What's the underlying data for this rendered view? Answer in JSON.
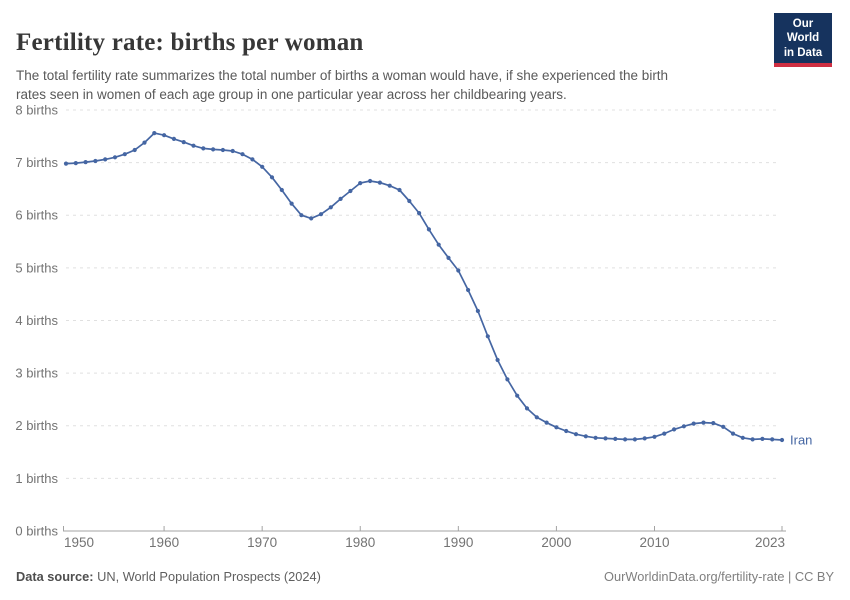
{
  "header": {
    "title": "Fertility rate: births per woman",
    "subtitle": "The total fertility rate summarizes the total number of births a woman would have, if she experienced the birth\nrates seen in women of each age group in one particular year across her childbearing years.",
    "logo": {
      "line1": "Our World",
      "line2": "in Data",
      "bg_color": "#16335e",
      "accent_color": "#cf2f42"
    }
  },
  "chart_data": {
    "type": "line",
    "title": "Fertility rate: births per woman",
    "entity": "Iran",
    "end_label": "Iran",
    "unit": "births per woman",
    "xlabel": "",
    "ylabel": "births",
    "ylim": [
      0,
      8
    ],
    "xlim": [
      1950,
      2023
    ],
    "grid": "horizontal-dashed",
    "legend_position": "end-of-line-label",
    "colors": {
      "line": "#4566a3",
      "grid": "#e0e0e0",
      "axis_line": "#a3a3a3",
      "axis_text": "#737373"
    },
    "yticks": [
      {
        "value": 0,
        "label": "0 births"
      },
      {
        "value": 1,
        "label": "1 births"
      },
      {
        "value": 2,
        "label": "2 births"
      },
      {
        "value": 3,
        "label": "3 births"
      },
      {
        "value": 4,
        "label": "4 births"
      },
      {
        "value": 5,
        "label": "5 births"
      },
      {
        "value": 6,
        "label": "6 births"
      },
      {
        "value": 7,
        "label": "7 births"
      },
      {
        "value": 8,
        "label": "8 births"
      }
    ],
    "xticks": [
      {
        "value": 1950,
        "label": "1950",
        "align": "start"
      },
      {
        "value": 1960,
        "label": "1960",
        "align": "middle"
      },
      {
        "value": 1970,
        "label": "1970",
        "align": "middle"
      },
      {
        "value": 1980,
        "label": "1980",
        "align": "middle"
      },
      {
        "value": 1990,
        "label": "1990",
        "align": "middle"
      },
      {
        "value": 2000,
        "label": "2000",
        "align": "middle"
      },
      {
        "value": 2010,
        "label": "2010",
        "align": "middle"
      },
      {
        "value": 2023,
        "label": "2023",
        "align": "end"
      }
    ],
    "x": [
      1950,
      1951,
      1952,
      1953,
      1954,
      1955,
      1956,
      1957,
      1958,
      1959,
      1960,
      1961,
      1962,
      1963,
      1964,
      1965,
      1966,
      1967,
      1968,
      1969,
      1970,
      1971,
      1972,
      1973,
      1974,
      1975,
      1976,
      1977,
      1978,
      1979,
      1980,
      1981,
      1982,
      1983,
      1984,
      1985,
      1986,
      1987,
      1988,
      1989,
      1990,
      1991,
      1992,
      1993,
      1994,
      1995,
      1996,
      1997,
      1998,
      1999,
      2000,
      2001,
      2002,
      2003,
      2004,
      2005,
      2006,
      2007,
      2008,
      2009,
      2010,
      2011,
      2012,
      2013,
      2014,
      2015,
      2016,
      2017,
      2018,
      2019,
      2020,
      2021,
      2022,
      2023
    ],
    "series": [
      {
        "name": "Iran",
        "values": [
          6.98,
          6.99,
          7.01,
          7.03,
          7.06,
          7.1,
          7.16,
          7.24,
          7.38,
          7.56,
          7.52,
          7.45,
          7.39,
          7.32,
          7.27,
          7.25,
          7.24,
          7.22,
          7.16,
          7.06,
          6.92,
          6.72,
          6.48,
          6.22,
          6.0,
          5.94,
          6.02,
          6.15,
          6.31,
          6.46,
          6.61,
          6.65,
          6.62,
          6.56,
          6.48,
          6.27,
          6.04,
          5.73,
          5.44,
          5.19,
          4.95,
          4.58,
          4.18,
          3.7,
          3.25,
          2.88,
          2.57,
          2.33,
          2.16,
          2.06,
          1.97,
          1.9,
          1.84,
          1.8,
          1.77,
          1.76,
          1.75,
          1.74,
          1.74,
          1.76,
          1.79,
          1.85,
          1.93,
          1.99,
          2.04,
          2.06,
          2.05,
          1.98,
          1.85,
          1.77,
          1.74,
          1.75,
          1.74,
          1.73
        ]
      }
    ]
  },
  "footer": {
    "source_label": "Data source:",
    "source_value": "UN, World Population Prospects (2024)",
    "credit": "OurWorldinData.org/fertility-rate | CC BY"
  }
}
